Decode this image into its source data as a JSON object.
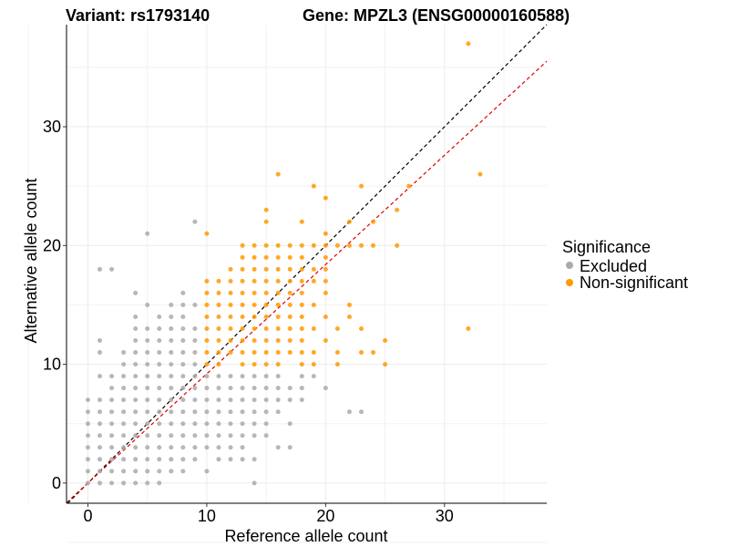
{
  "chart_data": {
    "type": "scatter",
    "title_left": "Variant: rs1793140",
    "title_right": "Gene: MPZL3 (ENSG00000160588)",
    "xlabel": "Reference allele count",
    "ylabel": "Alternative allele count",
    "xlim": [
      -1.8,
      38.6
    ],
    "ylim": [
      -1.7,
      38.6
    ],
    "x_ticks": [
      0,
      10,
      20,
      30
    ],
    "y_ticks": [
      0,
      10,
      20,
      30
    ],
    "grid": true,
    "legend": {
      "title": "Significance",
      "placement": "right",
      "entries": [
        {
          "label": "Excluded",
          "color": "#aaaaaa"
        },
        {
          "label": "Non-significant",
          "color": "#ff9900"
        }
      ]
    },
    "reference_lines": [
      {
        "name": "y = x",
        "slope": 1.0,
        "intercept": 0,
        "color": "#000000",
        "dash": true
      },
      {
        "name": "fit",
        "slope": 0.92,
        "intercept": 0,
        "color": "#dd0000",
        "dash": true
      }
    ],
    "series": [
      {
        "name": "Excluded",
        "color": "#aaaaaa",
        "points": [
          [
            0,
            0
          ],
          [
            0,
            1
          ],
          [
            0,
            2
          ],
          [
            0,
            3
          ],
          [
            0,
            4
          ],
          [
            0,
            5
          ],
          [
            0,
            6
          ],
          [
            0,
            7
          ],
          [
            1,
            0
          ],
          [
            1,
            1
          ],
          [
            1,
            2
          ],
          [
            1,
            3
          ],
          [
            1,
            4
          ],
          [
            1,
            5
          ],
          [
            1,
            6
          ],
          [
            1,
            7
          ],
          [
            1,
            9
          ],
          [
            1,
            11
          ],
          [
            1,
            12
          ],
          [
            1,
            18
          ],
          [
            2,
            0
          ],
          [
            2,
            1
          ],
          [
            2,
            2
          ],
          [
            2,
            3
          ],
          [
            2,
            4
          ],
          [
            2,
            5
          ],
          [
            2,
            6
          ],
          [
            2,
            7
          ],
          [
            2,
            8
          ],
          [
            2,
            9
          ],
          [
            2,
            18
          ],
          [
            3,
            0
          ],
          [
            3,
            1
          ],
          [
            3,
            2
          ],
          [
            3,
            3
          ],
          [
            3,
            4
          ],
          [
            3,
            5
          ],
          [
            3,
            6
          ],
          [
            3,
            7
          ],
          [
            3,
            8
          ],
          [
            3,
            9
          ],
          [
            3,
            10
          ],
          [
            3,
            11
          ],
          [
            4,
            0
          ],
          [
            4,
            1
          ],
          [
            4,
            2
          ],
          [
            4,
            3
          ],
          [
            4,
            4
          ],
          [
            4,
            5
          ],
          [
            4,
            6
          ],
          [
            4,
            7
          ],
          [
            4,
            8
          ],
          [
            4,
            9
          ],
          [
            4,
            10
          ],
          [
            4,
            11
          ],
          [
            4,
            12
          ],
          [
            4,
            13
          ],
          [
            4,
            14
          ],
          [
            4,
            16
          ],
          [
            5,
            0
          ],
          [
            5,
            1
          ],
          [
            5,
            2
          ],
          [
            5,
            3
          ],
          [
            5,
            4
          ],
          [
            5,
            5
          ],
          [
            5,
            6
          ],
          [
            5,
            7
          ],
          [
            5,
            8
          ],
          [
            5,
            9
          ],
          [
            5,
            10
          ],
          [
            5,
            11
          ],
          [
            5,
            12
          ],
          [
            5,
            13
          ],
          [
            5,
            15
          ],
          [
            5,
            21
          ],
          [
            6,
            0
          ],
          [
            6,
            1
          ],
          [
            6,
            2
          ],
          [
            6,
            3
          ],
          [
            6,
            4
          ],
          [
            6,
            5
          ],
          [
            6,
            6
          ],
          [
            6,
            7
          ],
          [
            6,
            8
          ],
          [
            6,
            9
          ],
          [
            6,
            10
          ],
          [
            6,
            11
          ],
          [
            6,
            12
          ],
          [
            6,
            13
          ],
          [
            6,
            14
          ],
          [
            7,
            1
          ],
          [
            7,
            2
          ],
          [
            7,
            3
          ],
          [
            7,
            4
          ],
          [
            7,
            5
          ],
          [
            7,
            6
          ],
          [
            7,
            7
          ],
          [
            7,
            8
          ],
          [
            7,
            9
          ],
          [
            7,
            10
          ],
          [
            7,
            11
          ],
          [
            7,
            12
          ],
          [
            7,
            13
          ],
          [
            7,
            14
          ],
          [
            7,
            15
          ],
          [
            8,
            1
          ],
          [
            8,
            2
          ],
          [
            8,
            3
          ],
          [
            8,
            4
          ],
          [
            8,
            5
          ],
          [
            8,
            6
          ],
          [
            8,
            7
          ],
          [
            8,
            8
          ],
          [
            8,
            9
          ],
          [
            8,
            10
          ],
          [
            8,
            11
          ],
          [
            8,
            12
          ],
          [
            8,
            13
          ],
          [
            8,
            14
          ],
          [
            8,
            15
          ],
          [
            8,
            16
          ],
          [
            9,
            2
          ],
          [
            9,
            3
          ],
          [
            9,
            4
          ],
          [
            9,
            5
          ],
          [
            9,
            6
          ],
          [
            9,
            7
          ],
          [
            9,
            8
          ],
          [
            9,
            9
          ],
          [
            9,
            10
          ],
          [
            9,
            11
          ],
          [
            9,
            12
          ],
          [
            9,
            13
          ],
          [
            9,
            15
          ],
          [
            9,
            22
          ],
          [
            10,
            1
          ],
          [
            10,
            3
          ],
          [
            10,
            4
          ],
          [
            10,
            5
          ],
          [
            10,
            6
          ],
          [
            10,
            7
          ],
          [
            10,
            8
          ],
          [
            10,
            9
          ],
          [
            11,
            2
          ],
          [
            11,
            3
          ],
          [
            11,
            4
          ],
          [
            11,
            5
          ],
          [
            11,
            6
          ],
          [
            11,
            7
          ],
          [
            11,
            8
          ],
          [
            11,
            9
          ],
          [
            12,
            2
          ],
          [
            12,
            3
          ],
          [
            12,
            4
          ],
          [
            12,
            5
          ],
          [
            12,
            6
          ],
          [
            12,
            7
          ],
          [
            12,
            8
          ],
          [
            12,
            9
          ],
          [
            13,
            2
          ],
          [
            13,
            3
          ],
          [
            13,
            4
          ],
          [
            13,
            5
          ],
          [
            13,
            6
          ],
          [
            13,
            7
          ],
          [
            13,
            8
          ],
          [
            13,
            9
          ],
          [
            14,
            2
          ],
          [
            14,
            4
          ],
          [
            14,
            5
          ],
          [
            14,
            6
          ],
          [
            14,
            7
          ],
          [
            14,
            8
          ],
          [
            14,
            9
          ],
          [
            15,
            4
          ],
          [
            15,
            5
          ],
          [
            15,
            6
          ],
          [
            15,
            7
          ],
          [
            15,
            8
          ],
          [
            15,
            9
          ],
          [
            16,
            3
          ],
          [
            16,
            6
          ],
          [
            16,
            7
          ],
          [
            16,
            8
          ],
          [
            16,
            9
          ],
          [
            17,
            3
          ],
          [
            17,
            5
          ],
          [
            17,
            7
          ],
          [
            17,
            8
          ],
          [
            18,
            7
          ],
          [
            18,
            8
          ],
          [
            18,
            9
          ],
          [
            19,
            9
          ],
          [
            20,
            8
          ],
          [
            14,
            0
          ],
          [
            22,
            6
          ],
          [
            23,
            6
          ]
        ]
      },
      {
        "name": "Non-significant",
        "color": "#ff9900",
        "points": [
          [
            10,
            10
          ],
          [
            10,
            11
          ],
          [
            10,
            12
          ],
          [
            10,
            13
          ],
          [
            10,
            14
          ],
          [
            10,
            15
          ],
          [
            10,
            16
          ],
          [
            10,
            17
          ],
          [
            10,
            21
          ],
          [
            11,
            10
          ],
          [
            11,
            11
          ],
          [
            11,
            12
          ],
          [
            11,
            13
          ],
          [
            11,
            14
          ],
          [
            11,
            15
          ],
          [
            11,
            16
          ],
          [
            11,
            17
          ],
          [
            12,
            11
          ],
          [
            12,
            12
          ],
          [
            12,
            13
          ],
          [
            12,
            14
          ],
          [
            12,
            15
          ],
          [
            12,
            16
          ],
          [
            12,
            17
          ],
          [
            12,
            18
          ],
          [
            13,
            10
          ],
          [
            13,
            11
          ],
          [
            13,
            12
          ],
          [
            13,
            13
          ],
          [
            13,
            14
          ],
          [
            13,
            15
          ],
          [
            13,
            16
          ],
          [
            13,
            17
          ],
          [
            13,
            18
          ],
          [
            13,
            19
          ],
          [
            13,
            20
          ],
          [
            14,
            10
          ],
          [
            14,
            11
          ],
          [
            14,
            12
          ],
          [
            14,
            13
          ],
          [
            14,
            14
          ],
          [
            14,
            15
          ],
          [
            14,
            16
          ],
          [
            14,
            17
          ],
          [
            14,
            18
          ],
          [
            14,
            19
          ],
          [
            14,
            20
          ],
          [
            15,
            10
          ],
          [
            15,
            11
          ],
          [
            15,
            12
          ],
          [
            15,
            13
          ],
          [
            15,
            14
          ],
          [
            15,
            15
          ],
          [
            15,
            16
          ],
          [
            15,
            17
          ],
          [
            15,
            18
          ],
          [
            15,
            19
          ],
          [
            15,
            20
          ],
          [
            15,
            22
          ],
          [
            15,
            23
          ],
          [
            16,
            10
          ],
          [
            16,
            11
          ],
          [
            16,
            12
          ],
          [
            16,
            13
          ],
          [
            16,
            14
          ],
          [
            16,
            15
          ],
          [
            16,
            16
          ],
          [
            16,
            17
          ],
          [
            16,
            18
          ],
          [
            16,
            19
          ],
          [
            16,
            20
          ],
          [
            16,
            26
          ],
          [
            17,
            11
          ],
          [
            17,
            12
          ],
          [
            17,
            13
          ],
          [
            17,
            14
          ],
          [
            17,
            15
          ],
          [
            17,
            16
          ],
          [
            17,
            17
          ],
          [
            17,
            18
          ],
          [
            17,
            19
          ],
          [
            17,
            20
          ],
          [
            18,
            10
          ],
          [
            18,
            11
          ],
          [
            18,
            12
          ],
          [
            18,
            13
          ],
          [
            18,
            14
          ],
          [
            18,
            15
          ],
          [
            18,
            16
          ],
          [
            18,
            17
          ],
          [
            18,
            18
          ],
          [
            18,
            19
          ],
          [
            18,
            20
          ],
          [
            18,
            22
          ],
          [
            19,
            10
          ],
          [
            19,
            11
          ],
          [
            19,
            13
          ],
          [
            19,
            15
          ],
          [
            19,
            17
          ],
          [
            19,
            18
          ],
          [
            19,
            20
          ],
          [
            19,
            25
          ],
          [
            20,
            12
          ],
          [
            20,
            14
          ],
          [
            20,
            16
          ],
          [
            20,
            17
          ],
          [
            20,
            18
          ],
          [
            20,
            19
          ],
          [
            20,
            20
          ],
          [
            20,
            21
          ],
          [
            20,
            24
          ],
          [
            21,
            10
          ],
          [
            21,
            11
          ],
          [
            21,
            13
          ],
          [
            21,
            20
          ],
          [
            22,
            14
          ],
          [
            22,
            15
          ],
          [
            22,
            20
          ],
          [
            22,
            22
          ],
          [
            23,
            11
          ],
          [
            23,
            13
          ],
          [
            23,
            20
          ],
          [
            23,
            25
          ],
          [
            24,
            11
          ],
          [
            24,
            20
          ],
          [
            24,
            22
          ],
          [
            25,
            10
          ],
          [
            25,
            12
          ],
          [
            26,
            20
          ],
          [
            26,
            23
          ],
          [
            27,
            25
          ],
          [
            32,
            13
          ],
          [
            32,
            37
          ],
          [
            33,
            26
          ]
        ]
      }
    ]
  }
}
